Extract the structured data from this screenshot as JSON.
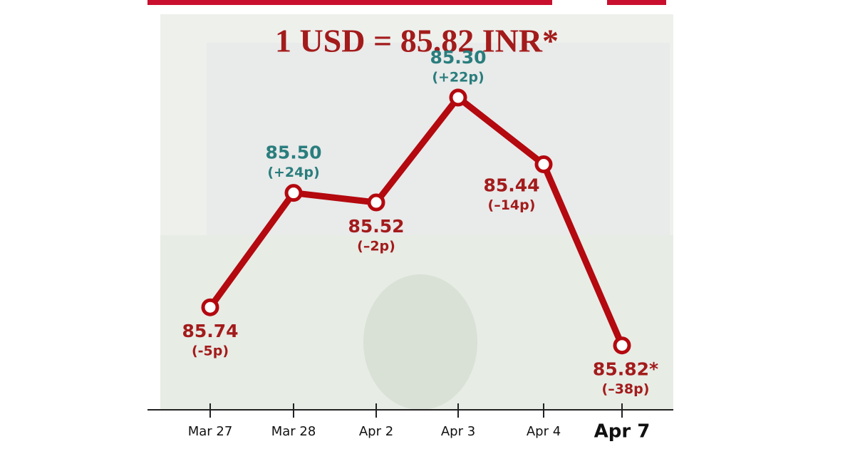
{
  "chart_data": {
    "type": "line",
    "title": "1 USD = 85.82 INR*",
    "categories": [
      "Mar 27",
      "Mar 28",
      "Apr 2",
      "Apr 3",
      "Apr 4",
      "Apr 7"
    ],
    "values": [
      85.74,
      85.5,
      85.52,
      85.3,
      85.44,
      85.82
    ],
    "value_labels": [
      "85.74",
      "85.50",
      "85.52",
      "85.30",
      "85.44",
      "85.82*"
    ],
    "change_labels": [
      "(-5p)",
      "(+24p)",
      "(–2p)",
      "(+22p)",
      "(–14p)",
      "(–38p)"
    ],
    "label_colors": [
      "#a31b1b",
      "#2a7d7d",
      "#a31b1b",
      "#2a7d7d",
      "#a31b1b",
      "#a31b1b"
    ],
    "color": "#b3090f",
    "ylim": [
      85.955,
      85.2
    ]
  }
}
